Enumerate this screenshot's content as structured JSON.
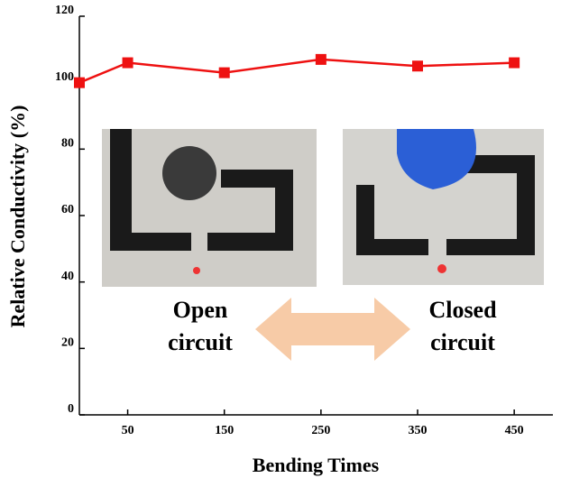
{
  "chart_data": {
    "type": "line",
    "xlabel": "Bending Times",
    "ylabel": "Relative Conductivity (%)",
    "x": [
      0,
      50,
      150,
      250,
      350,
      450
    ],
    "series": [
      {
        "color": "#ee1111",
        "values": [
          100,
          106,
          103,
          107,
          105,
          106
        ]
      }
    ],
    "xlim": [
      0,
      490
    ],
    "xticks": [
      50,
      150,
      250,
      350,
      450
    ],
    "ylim": [
      0,
      120
    ],
    "yticks": [
      0,
      20,
      40,
      60,
      80,
      100,
      120
    ],
    "annotations": [
      [
        "Open",
        "circuit"
      ],
      [
        "Closed",
        "circuit"
      ]
    ]
  }
}
